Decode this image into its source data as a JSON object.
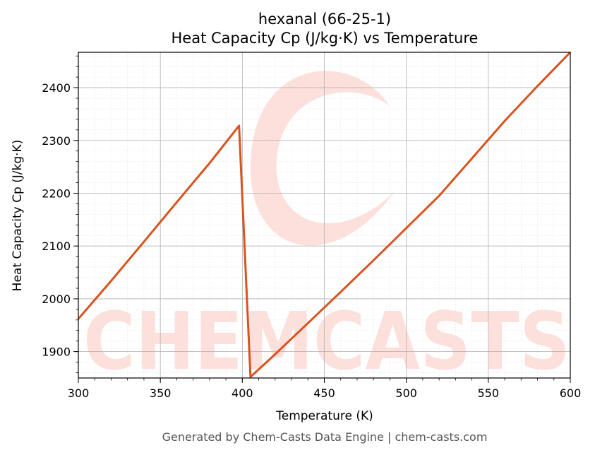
{
  "colors": {
    "line": "#d9531e",
    "watermark": "#fde0db",
    "grid_major": "#b0b0b0",
    "grid_minor": "#e6e6e6",
    "footer": "#555555"
  },
  "chart_data": {
    "type": "line",
    "title": "hexanal (66-25-1)",
    "subtitle": "Heat Capacity Cp (J/kg·K) vs Temperature",
    "xlabel": "Temperature (K)",
    "ylabel": "Heat Capacity Cp (J/kg·K)",
    "xlim": [
      300,
      600
    ],
    "ylim": [
      1850,
      2467
    ],
    "xticks": [
      300,
      350,
      400,
      450,
      500,
      550,
      600
    ],
    "yticks": [
      1900,
      2000,
      2100,
      2200,
      2300,
      2400
    ],
    "grid": true,
    "minor_grid": true,
    "series": [
      {
        "x": [
          300,
          320,
          340,
          360,
          380,
          398,
          405,
          420,
          440,
          460,
          480,
          500,
          520,
          540,
          560,
          580,
          600
        ],
        "y": [
          1962,
          2034,
          2108,
          2183,
          2257,
          2328,
          1852,
          1895,
          1954,
          2013,
          2073,
          2134,
          2195,
          2266,
          2337,
          2403,
          2467
        ]
      }
    ]
  },
  "watermark": {
    "text": "CHEMCASTS"
  },
  "footer": "Generated by Chem-Casts Data Engine | chem-casts.com"
}
